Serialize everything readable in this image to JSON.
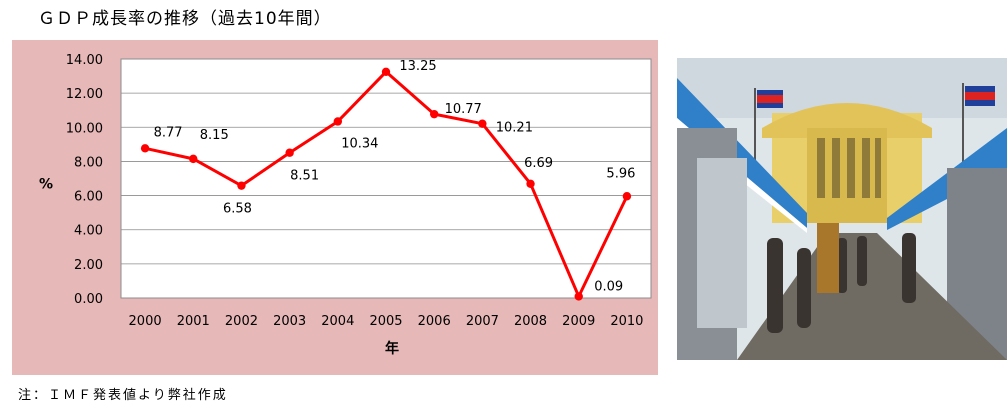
{
  "page": {
    "title": "ＧＤＰ成長率の推移（過去10年間）",
    "note": "注：ＩＭＦ発表値より弊社作成"
  },
  "chart_data": {
    "type": "line",
    "title": "",
    "xlabel": "年",
    "ylabel": "%",
    "categories": [
      "2000",
      "2001",
      "2002",
      "2003",
      "2004",
      "2005",
      "2006",
      "2007",
      "2008",
      "2009",
      "2010"
    ],
    "series": [
      {
        "values": [
          8.77,
          8.15,
          6.58,
          8.51,
          10.34,
          13.25,
          10.77,
          10.21,
          6.69,
          0.09,
          5.96
        ]
      }
    ],
    "data_labels": [
      "8.77",
      "8.15",
      "6.58",
      "8.51",
      "10.34",
      "13.25",
      "10.77",
      "10.21",
      "6.69",
      "0.09",
      "5.96"
    ],
    "yticks": [
      "0.00",
      "2.00",
      "4.00",
      "6.00",
      "8.00",
      "10.00",
      "12.00",
      "14.00"
    ],
    "ylim": [
      0,
      14
    ],
    "grid": true,
    "colors": {
      "line": "#ff0000",
      "panel": "#e6b8b7",
      "plot": "#ffffff",
      "grid": "#8c8c8c"
    }
  },
  "photo": {
    "colors": {
      "sky": "#dfe6ea",
      "dome": "#e8cf6a",
      "awning": "#2f7fc9",
      "ground": "#6f6a62"
    }
  }
}
